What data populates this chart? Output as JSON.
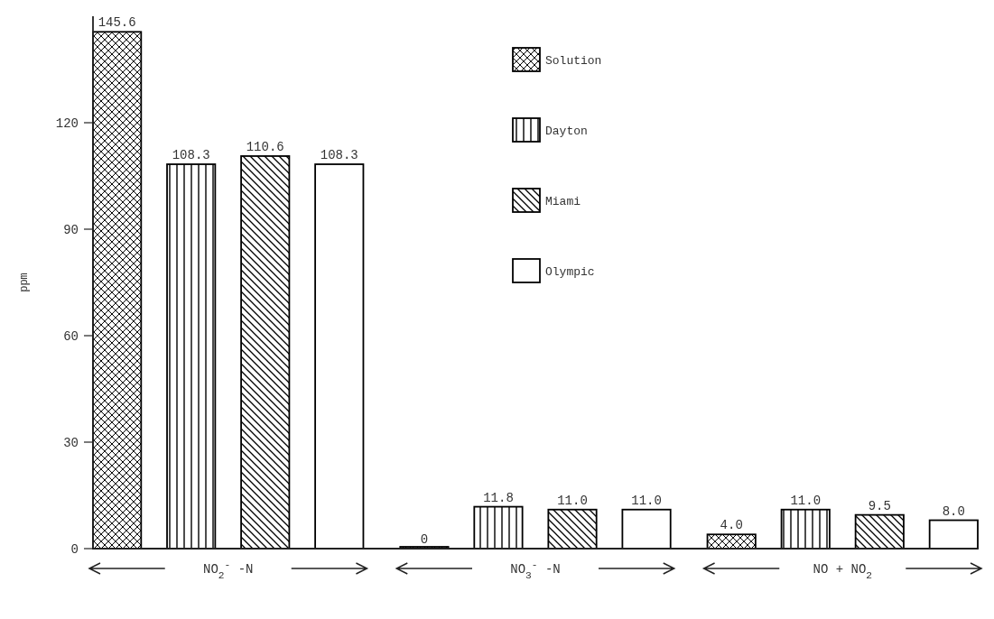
{
  "chart_data": {
    "type": "bar",
    "ylabel": "ppm",
    "categories": [
      "NO$_{2}$$^{-}$ -N",
      "NO$_{3}$$^{-}$ -N",
      "NO + NO$_{2}$"
    ],
    "series": [
      {
        "name": "Solution",
        "color": "#000000",
        "values": [
          145.6,
          0,
          4.0
        ],
        "value_labels": [
          "145.6",
          "0",
          "4.0"
        ]
      },
      {
        "name": "Dayton",
        "color": "#000000",
        "values": [
          108.3,
          11.8,
          11.0
        ],
        "value_labels": [
          "108.3",
          "11.8",
          "11.0"
        ]
      },
      {
        "name": "Miami",
        "color": "#000000",
        "values": [
          110.6,
          11.0,
          9.5
        ],
        "value_labels": [
          "110.6",
          "11.0",
          "9.5"
        ]
      },
      {
        "name": "Olympic",
        "color": "#000000",
        "values": [
          108.3,
          11.0,
          8.0
        ],
        "value_labels": [
          "108.3",
          "11.0",
          "8.0"
        ]
      }
    ],
    "ylim": [
      0,
      150
    ],
    "yticks": [
      0,
      30,
      60,
      90,
      120
    ],
    "grid": false,
    "legend": "top"
  }
}
